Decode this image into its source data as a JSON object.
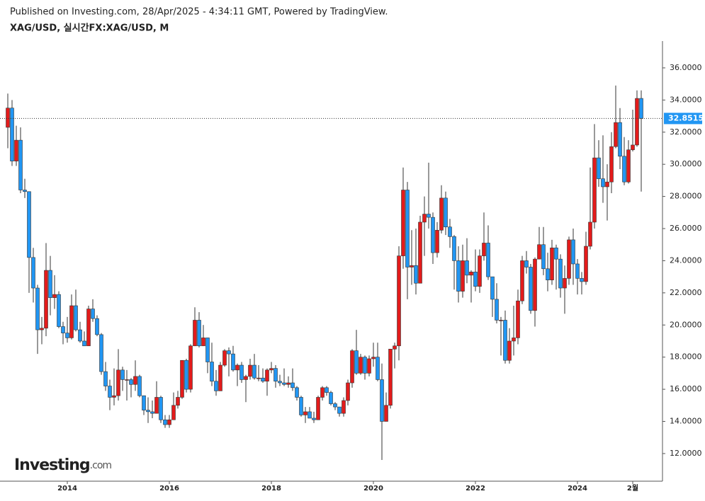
{
  "header": {
    "publisher": "Published on Investing.com, 28/Apr/2025 - 4:34:11 GMT, Powered by TradingView.",
    "symbol": "XAG/USD, 실시간FX:XAG/USD, M"
  },
  "logo": {
    "name": "Investing",
    "suffix": ".com"
  },
  "chart_data": {
    "type": "candlestick",
    "categories": [
      null,
      null,
      null,
      null,
      null,
      null,
      null,
      null,
      null,
      null,
      null,
      null,
      null,
      null,
      "2014",
      null,
      null,
      null,
      null,
      null,
      null,
      null,
      null,
      null,
      null,
      null,
      null,
      null,
      null,
      null,
      null,
      null,
      null,
      null,
      null,
      null,
      null,
      null,
      "2016",
      null,
      null,
      null,
      null,
      null,
      null,
      null,
      null,
      null,
      null,
      null,
      null,
      null,
      null,
      null,
      null,
      null,
      null,
      null,
      null,
      null,
      null,
      null,
      "2018",
      null,
      null,
      null,
      null,
      null,
      null,
      null,
      null,
      null,
      null,
      null,
      null,
      null,
      null,
      null,
      null,
      null,
      null,
      null,
      null,
      null,
      null,
      null,
      "2020",
      null,
      null,
      null,
      null,
      null,
      null,
      null,
      null,
      null,
      null,
      null,
      null,
      null,
      null,
      null,
      null,
      null,
      null,
      null,
      null,
      null,
      null,
      null,
      "2022",
      null,
      null,
      null,
      null,
      null,
      null,
      null,
      null,
      null,
      null,
      null,
      null,
      null,
      null,
      null,
      null,
      null,
      null,
      null,
      null,
      null,
      null,
      null,
      "2024",
      null,
      null,
      null,
      null,
      null,
      null,
      null,
      null,
      null,
      null,
      null,
      null,
      "2월",
      null,
      null
    ],
    "open": [
      32.3,
      33.5,
      30.2,
      31.5,
      28.4,
      28.3,
      24.2,
      22.3,
      19.7,
      19.8,
      23.4,
      21.7,
      21.9,
      19.9,
      19.5,
      19.2,
      21.2,
      19.7,
      19.0,
      18.7,
      21.0,
      20.4,
      19.4,
      17.1,
      16.2,
      15.5,
      15.6,
      17.2,
      16.6,
      16.6,
      16.3,
      16.8,
      15.6,
      14.7,
      14.6,
      14.5,
      15.5,
      14.1,
      13.8,
      14.1,
      15.0,
      15.5,
      17.8,
      16.0,
      18.7,
      20.3,
      18.7,
      19.2,
      17.7,
      16.5,
      15.9,
      17.5,
      18.4,
      18.2,
      17.2,
      17.5,
      16.6,
      16.8,
      17.5,
      16.7,
      16.7,
      16.5,
      17.2,
      17.3,
      16.5,
      16.4,
      16.3,
      16.4,
      16.1,
      15.5,
      14.4,
      14.6,
      14.2,
      14.1,
      15.5,
      16.1,
      15.8,
      15.1,
      14.9,
      14.5,
      15.3,
      16.4,
      18.4,
      17.0,
      18.0,
      17.0,
      17.9,
      18.0,
      16.6,
      14.0,
      15.0,
      18.5,
      18.7,
      24.3,
      28.4,
      23.6,
      23.7,
      22.6,
      26.4,
      26.9,
      26.7,
      24.5,
      25.9,
      27.9,
      26.1,
      25.5,
      24.0,
      22.1,
      24.0,
      23.1,
      23.3,
      22.4,
      24.3,
      25.1,
      23.0,
      21.6,
      20.3,
      20.3,
      17.8,
      19.0,
      19.2,
      21.5,
      24.0,
      23.6,
      20.9,
      24.1,
      25.0,
      23.5,
      22.8,
      24.8,
      24.1,
      22.3,
      22.9,
      25.3,
      23.8,
      22.9,
      22.7,
      24.9,
      26.4,
      30.4,
      29.1,
      28.6,
      28.9,
      31.1,
      32.6,
      30.5,
      28.9,
      30.9,
      31.2,
      34.1
    ],
    "high": [
      34.4,
      34.0,
      32.4,
      32.3,
      29.1,
      28.3,
      24.8,
      22.5,
      20.5,
      25.1,
      24.3,
      23.1,
      22.1,
      20.2,
      20.5,
      21.9,
      22.2,
      20.2,
      19.6,
      21.2,
      21.6,
      20.6,
      19.5,
      17.7,
      16.6,
      17.3,
      18.5,
      17.4,
      17.2,
      16.7,
      17.8,
      16.9,
      15.6,
      15.5,
      15.3,
      16.5,
      15.6,
      14.4,
      14.4,
      15.8,
      15.9,
      17.8,
      17.9,
      18.8,
      21.1,
      20.8,
      20.0,
      19.2,
      18.9,
      17.2,
      17.7,
      18.5,
      18.6,
      18.7,
      17.6,
      17.7,
      16.9,
      17.9,
      18.2,
      17.5,
      17.3,
      17.3,
      17.7,
      17.5,
      16.9,
      17.3,
      16.8,
      17.3,
      16.2,
      15.6,
      14.9,
      14.9,
      14.6,
      15.6,
      16.2,
      16.2,
      15.9,
      15.2,
      14.9,
      15.5,
      16.6,
      18.5,
      19.7,
      18.2,
      18.1,
      18.1,
      18.9,
      18.9,
      17.6,
      15.8,
      18.5,
      18.9,
      24.9,
      29.8,
      28.9,
      25.9,
      26.0,
      26.8,
      28.0,
      30.1,
      27.0,
      26.4,
      28.7,
      28.3,
      26.6,
      25.6,
      24.9,
      25.0,
      25.4,
      23.4,
      24.7,
      24.7,
      27.0,
      26.2,
      23.0,
      22.6,
      20.5,
      20.9,
      19.8,
      21.2,
      22.2,
      24.3,
      24.6,
      23.8,
      24.2,
      26.1,
      26.1,
      24.5,
      25.3,
      25.0,
      24.4,
      23.7,
      25.5,
      26.0,
      24.1,
      23.3,
      25.8,
      29.8,
      32.5,
      31.5,
      31.8,
      30.0,
      32.0,
      34.9,
      33.5,
      31.7,
      31.5,
      33.4,
      34.6,
      34.6
    ],
    "low": [
      31.0,
      29.9,
      29.9,
      28.2,
      27.9,
      22.0,
      21.4,
      18.2,
      18.8,
      19.3,
      20.6,
      21.0,
      19.8,
      18.8,
      18.9,
      19.1,
      19.6,
      18.9,
      18.7,
      18.7,
      20.2,
      19.3,
      16.9,
      15.9,
      14.7,
      15.0,
      15.3,
      15.9,
      15.3,
      15.5,
      15.9,
      15.5,
      14.4,
      13.9,
      14.2,
      14.5,
      13.9,
      13.6,
      13.6,
      14.1,
      14.8,
      15.4,
      15.8,
      15.8,
      18.7,
      18.6,
      18.7,
      17.0,
      16.2,
      15.6,
      15.9,
      17.4,
      16.8,
      17.1,
      16.2,
      16.4,
      15.2,
      16.6,
      16.6,
      16.5,
      16.4,
      15.6,
      17.0,
      16.1,
      16.2,
      16.2,
      16.1,
      15.9,
      15.3,
      14.3,
      13.9,
      14.2,
      13.9,
      14.1,
      15.3,
      15.6,
      15.0,
      14.7,
      14.3,
      14.3,
      15.0,
      16.1,
      16.9,
      16.9,
      16.6,
      16.8,
      17.4,
      16.5,
      11.6,
      14.0,
      14.8,
      17.3,
      17.8,
      23.5,
      21.6,
      22.5,
      21.9,
      22.6,
      24.3,
      26.0,
      23.8,
      24.2,
      25.7,
      25.6,
      24.8,
      22.2,
      21.4,
      21.7,
      22.6,
      21.4,
      22.1,
      22.0,
      24.0,
      22.8,
      20.5,
      20.1,
      18.1,
      17.6,
      17.6,
      18.1,
      18.8,
      21.3,
      23.2,
      20.7,
      19.9,
      24.1,
      23.1,
      22.1,
      22.5,
      22.2,
      21.7,
      20.7,
      22.5,
      22.5,
      21.9,
      21.9,
      22.5,
      24.7,
      26.0,
      28.6,
      27.6,
      26.5,
      28.2,
      31.0,
      29.7,
      28.7,
      28.8,
      30.8,
      31.1,
      28.3
    ],
    "close": [
      33.5,
      30.2,
      31.5,
      28.4,
      28.3,
      24.2,
      22.3,
      19.7,
      19.8,
      23.4,
      21.7,
      21.9,
      19.9,
      19.5,
      19.2,
      21.2,
      19.7,
      19.0,
      18.7,
      21.0,
      20.4,
      19.4,
      17.1,
      16.2,
      15.5,
      15.6,
      17.2,
      16.6,
      16.6,
      16.3,
      16.8,
      15.6,
      14.7,
      14.6,
      14.5,
      15.5,
      14.1,
      13.8,
      14.1,
      15.0,
      15.5,
      17.8,
      16.0,
      18.7,
      20.3,
      18.7,
      19.2,
      17.7,
      16.5,
      15.9,
      17.5,
      18.4,
      18.2,
      17.2,
      17.5,
      16.6,
      16.8,
      17.5,
      16.7,
      16.7,
      16.5,
      17.2,
      17.3,
      16.5,
      16.4,
      16.3,
      16.4,
      16.1,
      15.5,
      14.4,
      14.6,
      14.2,
      14.1,
      15.5,
      16.1,
      15.8,
      15.1,
      14.9,
      14.5,
      15.3,
      16.4,
      18.4,
      17.0,
      18.0,
      17.0,
      17.9,
      18.0,
      16.6,
      14.0,
      15.0,
      18.5,
      18.7,
      24.3,
      28.4,
      23.6,
      23.7,
      22.6,
      26.4,
      26.9,
      26.7,
      24.5,
      25.9,
      27.9,
      26.1,
      25.5,
      24.0,
      22.1,
      24.0,
      23.1,
      23.3,
      22.4,
      24.3,
      25.1,
      23.0,
      21.6,
      20.3,
      20.3,
      17.8,
      19.0,
      19.2,
      21.5,
      24.0,
      23.6,
      20.9,
      24.1,
      25.0,
      23.5,
      22.8,
      24.8,
      24.1,
      22.3,
      22.9,
      25.3,
      23.8,
      22.9,
      22.7,
      24.9,
      26.4,
      30.4,
      29.1,
      28.6,
      28.9,
      31.1,
      32.6,
      30.5,
      28.9,
      30.9,
      31.2,
      34.1,
      32.8515
    ],
    "up_color": "#e31b1b",
    "down_color": "#2196f3",
    "ylim": [
      10.28,
      37.67
    ],
    "yticks": [
      {
        "value": 12,
        "label": "12.0000"
      },
      {
        "value": 14,
        "label": "14.0000"
      },
      {
        "value": 16,
        "label": "16.0000"
      },
      {
        "value": 18,
        "label": "18.0000"
      },
      {
        "value": 20,
        "label": "20.0000"
      },
      {
        "value": 22,
        "label": "22.0000"
      },
      {
        "value": 24,
        "label": "24.0000"
      },
      {
        "value": 26,
        "label": "26.0000"
      },
      {
        "value": 28,
        "label": "28.0000"
      },
      {
        "value": 30,
        "label": "30.0000"
      },
      {
        "value": 32,
        "label": "32.0000"
      },
      {
        "value": 34,
        "label": "34.0000"
      },
      {
        "value": 36,
        "label": "36.0000"
      }
    ],
    "grid": false
  }
}
